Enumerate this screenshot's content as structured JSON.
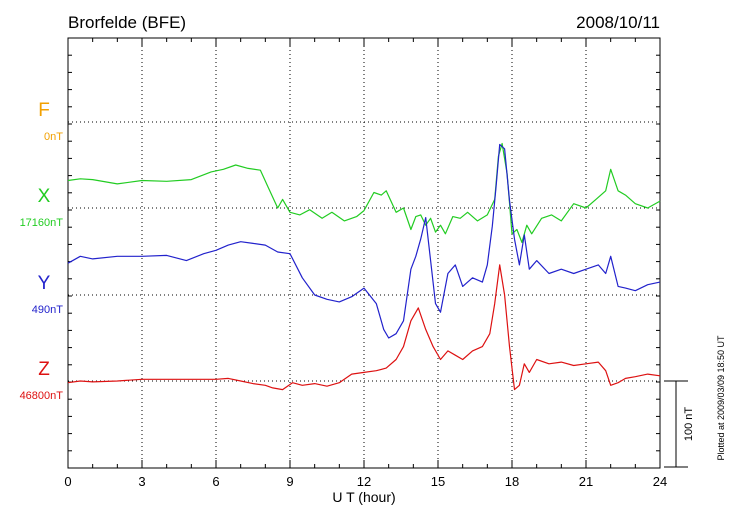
{
  "chart_data": {
    "type": "line",
    "station_title": "Brorfelde (BFE)",
    "date": "2008/10/11",
    "xlabel": "U T (hour)",
    "xlim": [
      0,
      24
    ],
    "x_ticks": [
      "0",
      "3",
      "6",
      "9",
      "12",
      "15",
      "18",
      "21",
      "24"
    ],
    "scale_label": "100 nT",
    "plotted_note": "Plotted at 2009/03/09 18:50 UT",
    "grid": true,
    "row_spacing_nT": 100,
    "series": [
      {
        "name": "F",
        "baseline": "0nT",
        "color": "#f2a000",
        "x": [],
        "y": []
      },
      {
        "name": "X",
        "baseline": "17160nT",
        "color": "#22cc22",
        "x": [
          0,
          0.5,
          1,
          2,
          3,
          4,
          5,
          5.8,
          6.3,
          6.8,
          7.3,
          7.8,
          8.1,
          8.5,
          8.7,
          9.0,
          9.4,
          9.8,
          10.3,
          10.7,
          11.2,
          11.7,
          12.0,
          12.4,
          12.7,
          12.9,
          13.3,
          13.6,
          13.9,
          14.1,
          14.3,
          14.5,
          14.7,
          14.9,
          15.1,
          15.3,
          15.6,
          15.9,
          16.2,
          16.6,
          17.0,
          17.3,
          17.45,
          17.6,
          17.8,
          18.0,
          18.2,
          18.4,
          18.6,
          18.8,
          19.2,
          19.6,
          20.0,
          20.5,
          21.0,
          21.4,
          21.8,
          22.0,
          22.3,
          22.6,
          23.0,
          23.5,
          24.0
        ],
        "y": [
          32,
          34,
          33,
          28,
          32,
          31,
          33,
          42,
          45,
          50,
          46,
          44,
          25,
          0,
          10,
          -5,
          -8,
          -2,
          -12,
          -5,
          -15,
          -10,
          -3,
          18,
          15,
          20,
          -5,
          0,
          -25,
          -10,
          -8,
          -20,
          -12,
          -28,
          -20,
          -30,
          -10,
          -12,
          -5,
          -15,
          -8,
          10,
          60,
          75,
          40,
          -30,
          -25,
          -40,
          -20,
          -30,
          -12,
          -8,
          -15,
          5,
          0,
          10,
          20,
          45,
          20,
          15,
          5,
          0,
          8
        ]
      },
      {
        "name": "Y",
        "baseline": "490nT",
        "color": "#2222cc",
        "x": [
          0,
          0.5,
          1,
          2,
          3,
          4,
          4.8,
          5.5,
          6,
          6.5,
          7,
          7.5,
          8,
          8.5,
          9,
          9.5,
          10,
          10.5,
          11,
          11.5,
          12,
          12.5,
          12.8,
          13.0,
          13.3,
          13.6,
          13.9,
          14.1,
          14.3,
          14.5,
          14.7,
          14.9,
          15.1,
          15.4,
          15.7,
          16.0,
          16.4,
          16.8,
          17.0,
          17.2,
          17.35,
          17.5,
          17.7,
          17.9,
          18.1,
          18.3,
          18.5,
          18.7,
          19.0,
          19.5,
          20.0,
          20.5,
          21.0,
          21.5,
          21.8,
          22.0,
          22.3,
          22.6,
          23.0,
          23.5,
          24.0
        ],
        "y": [
          37,
          45,
          42,
          45,
          45,
          46,
          40,
          48,
          52,
          58,
          62,
          60,
          58,
          50,
          48,
          20,
          0,
          -5,
          -8,
          -2,
          8,
          -10,
          -40,
          -50,
          -45,
          -30,
          30,
          45,
          65,
          90,
          40,
          -10,
          -20,
          25,
          35,
          10,
          20,
          15,
          35,
          80,
          125,
          175,
          170,
          110,
          65,
          35,
          70,
          30,
          40,
          25,
          30,
          25,
          30,
          35,
          25,
          45,
          10,
          8,
          5,
          12,
          15
        ]
      },
      {
        "name": "Z",
        "baseline": "46800nT",
        "color": "#dd1111",
        "x": [
          0,
          0.5,
          1,
          2,
          3,
          4,
          5,
          6,
          6.5,
          7,
          7.5,
          8,
          8.3,
          8.7,
          9.1,
          9.5,
          10,
          10.5,
          11,
          11.5,
          12,
          12.5,
          12.9,
          13.3,
          13.6,
          13.9,
          14.2,
          14.5,
          14.8,
          15.1,
          15.4,
          15.7,
          16.0,
          16.4,
          16.8,
          17.1,
          17.3,
          17.5,
          17.7,
          17.9,
          18.1,
          18.3,
          18.5,
          18.7,
          19.0,
          19.5,
          20.0,
          20.5,
          21.0,
          21.5,
          21.8,
          22.0,
          22.3,
          22.6,
          23.0,
          23.5,
          24.0
        ],
        "y": [
          -2,
          0,
          -1,
          0,
          2,
          2,
          2,
          2,
          3,
          0,
          -3,
          -5,
          -8,
          -10,
          -2,
          -5,
          -3,
          -6,
          -2,
          8,
          10,
          12,
          15,
          25,
          40,
          70,
          85,
          60,
          40,
          25,
          35,
          30,
          25,
          35,
          40,
          55,
          90,
          135,
          100,
          40,
          -10,
          -5,
          20,
          10,
          25,
          20,
          22,
          18,
          20,
          22,
          12,
          -5,
          -2,
          3,
          5,
          8,
          6
        ]
      }
    ]
  }
}
